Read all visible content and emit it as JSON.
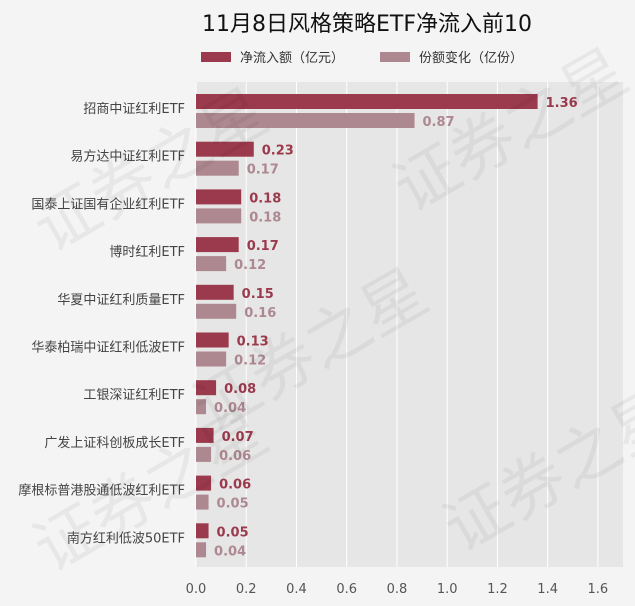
{
  "chart_data": {
    "type": "bar",
    "title": "11月8日风格策略ETF净流入前10",
    "categories": [
      "招商中证红利ETF",
      "易方达中证红利ETF",
      "国泰上证国有企业红利ETF",
      "博时红利ETF",
      "华夏中证红利质量ETF",
      "华泰柏瑞中证红利低波ETF",
      "工银深证红利ETF",
      "广发上证科创板成长ETF",
      "摩根标普港股通低波红利ETF",
      "南方红利低波50ETF"
    ],
    "series": [
      {
        "name": "净流入额（亿元）",
        "color": "#9b3a4c",
        "values": [
          1.36,
          0.23,
          0.18,
          0.17,
          0.15,
          0.13,
          0.08,
          0.07,
          0.06,
          0.05
        ],
        "labels": [
          "1.36",
          "0.23",
          "0.18",
          "0.17",
          "0.15",
          "0.13",
          "0.08",
          "0.07",
          "0.06",
          "0.05"
        ]
      },
      {
        "name": "份额变化（亿份）",
        "color": "#ad8890",
        "values": [
          0.87,
          0.17,
          0.18,
          0.12,
          0.16,
          0.12,
          0.04,
          0.06,
          0.05,
          0.04
        ],
        "labels": [
          "0.87",
          "0.17",
          "0.18",
          "0.12",
          "0.16",
          "0.12",
          "0.04",
          "0.06",
          "0.05",
          "0.04"
        ]
      }
    ],
    "xlim": [
      0,
      1.7
    ],
    "xticks": [
      "0.0",
      "0.2",
      "0.4",
      "0.6",
      "0.8",
      "1.0",
      "1.2",
      "1.4",
      "1.6"
    ],
    "grid": true,
    "legend": "top"
  },
  "watermark": "证券之星"
}
